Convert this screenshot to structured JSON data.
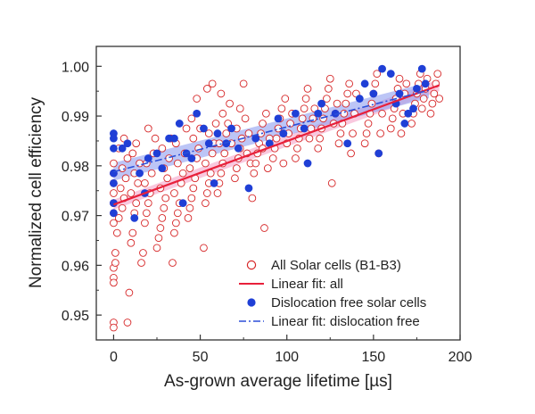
{
  "chart_data": {
    "type": "scatter",
    "xlabel": "As-grown average lifetime [µs]",
    "ylabel": "Normalized cell efficiency",
    "xlim": [
      -10,
      200
    ],
    "ylim": [
      0.945,
      1.004
    ],
    "x_ticks": [
      0,
      50,
      100,
      150,
      200
    ],
    "y_ticks": [
      0.95,
      0.96,
      0.97,
      0.98,
      0.99,
      1.0
    ],
    "x_tick_labels": [
      "0",
      "50",
      "100",
      "150",
      "200"
    ],
    "y_tick_labels": [
      "0.95",
      "0.96",
      "0.97",
      "0.98",
      "0.99",
      "1.00"
    ],
    "grid": false,
    "legend_position": "bottom-right",
    "colors": {
      "all_cells": "#d62728",
      "fit_all": "#e8203b",
      "fit_all_band": "#f5a3c8",
      "dislocation_free": "#1f3fd6",
      "fit_dislocation_free": "#2b4fd9",
      "fit_df_band": "#8f9ff0"
    },
    "series": [
      {
        "name": "All Solar cells (B1-B3)",
        "marker": "open-circle",
        "points": [
          [
            0,
            0.9595
          ],
          [
            0,
            0.9575
          ],
          [
            0,
            0.9565
          ],
          [
            0,
            0.9485
          ],
          [
            0,
            0.9475
          ],
          [
            0,
            0.9685
          ],
          [
            0,
            0.9705
          ],
          [
            0,
            0.9725
          ],
          [
            0,
            0.9745
          ],
          [
            0,
            0.9765
          ],
          [
            0,
            0.9785
          ],
          [
            0,
            0.9805
          ],
          [
            1,
            0.9625
          ],
          [
            1,
            0.9605
          ],
          [
            2,
            0.9665
          ],
          [
            3,
            0.9695
          ],
          [
            5,
            0.9715
          ],
          [
            6,
            0.9735
          ],
          [
            4,
            0.9755
          ],
          [
            7,
            0.9775
          ],
          [
            5,
            0.9795
          ],
          [
            8,
            0.9815
          ],
          [
            3,
            0.9835
          ],
          [
            6,
            0.9855
          ],
          [
            8,
            0.9485
          ],
          [
            9,
            0.9545
          ],
          [
            10,
            0.9645
          ],
          [
            11,
            0.9665
          ],
          [
            12,
            0.9705
          ],
          [
            13,
            0.9725
          ],
          [
            10,
            0.9745
          ],
          [
            14,
            0.9765
          ],
          [
            12,
            0.9785
          ],
          [
            15,
            0.9805
          ],
          [
            11,
            0.9825
          ],
          [
            13,
            0.9845
          ],
          [
            16,
            0.9605
          ],
          [
            17,
            0.9625
          ],
          [
            18,
            0.9685
          ],
          [
            19,
            0.9705
          ],
          [
            20,
            0.9725
          ],
          [
            21,
            0.9745
          ],
          [
            18,
            0.9765
          ],
          [
            22,
            0.9785
          ],
          [
            19,
            0.9805
          ],
          [
            23,
            0.9825
          ],
          [
            24,
            0.9855
          ],
          [
            20,
            0.9875
          ],
          [
            25,
            0.9635
          ],
          [
            26,
            0.9655
          ],
          [
            27,
            0.9675
          ],
          [
            28,
            0.9695
          ],
          [
            29,
            0.9715
          ],
          [
            30,
            0.9735
          ],
          [
            27,
            0.9755
          ],
          [
            31,
            0.9775
          ],
          [
            29,
            0.9795
          ],
          [
            32,
            0.9815
          ],
          [
            28,
            0.9835
          ],
          [
            33,
            0.9855
          ],
          [
            34,
            0.9605
          ],
          [
            35,
            0.9665
          ],
          [
            36,
            0.9685
          ],
          [
            37,
            0.9705
          ],
          [
            38,
            0.9725
          ],
          [
            35,
            0.9745
          ],
          [
            39,
            0.9765
          ],
          [
            40,
            0.9785
          ],
          [
            37,
            0.9805
          ],
          [
            41,
            0.9825
          ],
          [
            36,
            0.9845
          ],
          [
            42,
            0.9875
          ],
          [
            43,
            0.9695
          ],
          [
            44,
            0.9715
          ],
          [
            45,
            0.9735
          ],
          [
            46,
            0.9755
          ],
          [
            47,
            0.9775
          ],
          [
            44,
            0.9795
          ],
          [
            48,
            0.9815
          ],
          [
            49,
            0.9835
          ],
          [
            46,
            0.9855
          ],
          [
            50,
            0.9875
          ],
          [
            45,
            0.9895
          ],
          [
            48,
            0.9935
          ],
          [
            52,
            0.9635
          ],
          [
            53,
            0.9725
          ],
          [
            54,
            0.9745
          ],
          [
            55,
            0.9765
          ],
          [
            56,
            0.9785
          ],
          [
            53,
            0.9805
          ],
          [
            57,
            0.9825
          ],
          [
            58,
            0.9845
          ],
          [
            55,
            0.9865
          ],
          [
            59,
            0.9885
          ],
          [
            54,
            0.9955
          ],
          [
            57,
            0.9965
          ],
          [
            60,
            0.9745
          ],
          [
            61,
            0.9765
          ],
          [
            62,
            0.9785
          ],
          [
            63,
            0.9805
          ],
          [
            64,
            0.9825
          ],
          [
            61,
            0.9845
          ],
          [
            65,
            0.9865
          ],
          [
            66,
            0.9885
          ],
          [
            63,
            0.9905
          ],
          [
            67,
            0.9925
          ],
          [
            62,
            0.9945
          ],
          [
            68,
            0.9845
          ],
          [
            70,
            0.9775
          ],
          [
            71,
            0.9795
          ],
          [
            72,
            0.9815
          ],
          [
            73,
            0.9835
          ],
          [
            74,
            0.9855
          ],
          [
            71,
            0.9875
          ],
          [
            75,
            0.9965
          ],
          [
            76,
            0.9895
          ],
          [
            73,
            0.9915
          ],
          [
            77,
            0.9825
          ],
          [
            78,
            0.9865
          ],
          [
            79,
            0.9805
          ],
          [
            80,
            0.9735
          ],
          [
            81,
            0.9785
          ],
          [
            82,
            0.9805
          ],
          [
            83,
            0.9825
          ],
          [
            84,
            0.9845
          ],
          [
            85,
            0.9865
          ],
          [
            86,
            0.9885
          ],
          [
            87,
            0.9675
          ],
          [
            88,
            0.9905
          ],
          [
            89,
            0.9795
          ],
          [
            86,
            0.9835
          ],
          [
            90,
            0.9855
          ],
          [
            92,
            0.9815
          ],
          [
            93,
            0.9835
          ],
          [
            94,
            0.9855
          ],
          [
            95,
            0.9875
          ],
          [
            96,
            0.9895
          ],
          [
            97,
            0.9915
          ],
          [
            98,
            0.9805
          ],
          [
            99,
            0.9935
          ],
          [
            100,
            0.9845
          ],
          [
            101,
            0.9865
          ],
          [
            102,
            0.9885
          ],
          [
            103,
            0.9905
          ],
          [
            105,
            0.9815
          ],
          [
            106,
            0.9835
          ],
          [
            107,
            0.9855
          ],
          [
            108,
            0.9875
          ],
          [
            109,
            0.9895
          ],
          [
            110,
            0.9915
          ],
          [
            111,
            0.9935
          ],
          [
            112,
            0.9955
          ],
          [
            113,
            0.9855
          ],
          [
            114,
            0.9875
          ],
          [
            115,
            0.9895
          ],
          [
            116,
            0.9915
          ],
          [
            118,
            0.9835
          ],
          [
            119,
            0.9855
          ],
          [
            120,
            0.9875
          ],
          [
            121,
            0.9895
          ],
          [
            122,
            0.9915
          ],
          [
            123,
            0.9935
          ],
          [
            124,
            0.9955
          ],
          [
            125,
            0.9975
          ],
          [
            126,
            0.9765
          ],
          [
            127,
            0.9885
          ],
          [
            128,
            0.9905
          ],
          [
            129,
            0.9925
          ],
          [
            130,
            0.9845
          ],
          [
            131,
            0.9865
          ],
          [
            132,
            0.9885
          ],
          [
            133,
            0.9905
          ],
          [
            134,
            0.9925
          ],
          [
            135,
            0.9945
          ],
          [
            136,
            0.9965
          ],
          [
            137,
            0.9825
          ],
          [
            138,
            0.9865
          ],
          [
            139,
            0.9905
          ],
          [
            140,
            0.9945
          ],
          [
            145,
            0.9845
          ],
          [
            146,
            0.9865
          ],
          [
            147,
            0.9885
          ],
          [
            148,
            0.9905
          ],
          [
            149,
            0.9925
          ],
          [
            150,
            0.9945
          ],
          [
            151,
            0.9965
          ],
          [
            152,
            0.9985
          ],
          [
            153,
            0.9825
          ],
          [
            154,
            0.9865
          ],
          [
            155,
            0.9905
          ],
          [
            160,
            0.9875
          ],
          [
            161,
            0.9895
          ],
          [
            162,
            0.9915
          ],
          [
            163,
            0.9935
          ],
          [
            164,
            0.9955
          ],
          [
            165,
            0.9975
          ],
          [
            166,
            0.9865
          ],
          [
            167,
            0.9905
          ],
          [
            168,
            0.9945
          ],
          [
            169,
            0.9965
          ],
          [
            172,
            0.9885
          ],
          [
            173,
            0.9905
          ],
          [
            174,
            0.9925
          ],
          [
            175,
            0.9945
          ],
          [
            176,
            0.9965
          ],
          [
            177,
            0.9985
          ],
          [
            178,
            0.9915
          ],
          [
            179,
            0.9935
          ],
          [
            180,
            0.9955
          ],
          [
            181,
            0.9975
          ],
          [
            183,
            0.9905
          ],
          [
            184,
            0.9925
          ],
          [
            185,
            0.9945
          ],
          [
            186,
            0.9965
          ],
          [
            187,
            0.9985
          ],
          [
            188,
            0.9935
          ]
        ]
      },
      {
        "name": "Linear fit: all",
        "type": "line",
        "x": [
          0,
          188
        ],
        "y": [
          0.9722,
          0.9962
        ],
        "band": [
          [
            0,
            0.9712,
            0.9732
          ],
          [
            188,
            0.995,
            0.9974
          ]
        ]
      },
      {
        "name": "Dislocation free solar cells",
        "marker": "filled-circle",
        "points": [
          [
            0,
            0.9865
          ],
          [
            0,
            0.9855
          ],
          [
            0,
            0.9835
          ],
          [
            0,
            0.9785
          ],
          [
            0,
            0.9765
          ],
          [
            0,
            0.9725
          ],
          [
            0,
            0.9705
          ],
          [
            5,
            0.9835
          ],
          [
            8,
            0.9845
          ],
          [
            12,
            0.9695
          ],
          [
            15,
            0.9785
          ],
          [
            18,
            0.9745
          ],
          [
            20,
            0.9815
          ],
          [
            25,
            0.9825
          ],
          [
            28,
            0.9795
          ],
          [
            32,
            0.9855
          ],
          [
            35,
            0.9855
          ],
          [
            38,
            0.9885
          ],
          [
            40,
            0.9725
          ],
          [
            42,
            0.9825
          ],
          [
            45,
            0.9815
          ],
          [
            48,
            0.9905
          ],
          [
            52,
            0.9875
          ],
          [
            55,
            0.9845
          ],
          [
            58,
            0.9765
          ],
          [
            60,
            0.9865
          ],
          [
            65,
            0.9845
          ],
          [
            68,
            0.9875
          ],
          [
            72,
            0.9835
          ],
          [
            78,
            0.9755
          ],
          [
            82,
            0.9855
          ],
          [
            90,
            0.9845
          ],
          [
            95,
            0.9895
          ],
          [
            98,
            0.9865
          ],
          [
            105,
            0.9905
          ],
          [
            110,
            0.9875
          ],
          [
            112,
            0.9805
          ],
          [
            118,
            0.9905
          ],
          [
            120,
            0.9925
          ],
          [
            128,
            0.9905
          ],
          [
            135,
            0.9845
          ],
          [
            142,
            0.9935
          ],
          [
            145,
            0.9965
          ],
          [
            150,
            0.9945
          ],
          [
            153,
            0.9825
          ],
          [
            155,
            0.9995
          ],
          [
            160,
            0.9985
          ],
          [
            163,
            0.9925
          ],
          [
            165,
            0.9945
          ],
          [
            168,
            0.9885
          ],
          [
            170,
            0.9905
          ],
          [
            173,
            0.9915
          ],
          [
            175,
            0.9955
          ],
          [
            178,
            0.9995
          ],
          [
            180,
            0.9965
          ]
        ]
      },
      {
        "name": "Linear fit: dislocation free",
        "type": "line",
        "x": [
          0,
          182
        ],
        "y": [
          0.9788,
          0.9952
        ],
        "band": [
          [
            0,
            0.977,
            0.9806
          ],
          [
            182,
            0.9936,
            0.9968
          ]
        ]
      }
    ]
  }
}
